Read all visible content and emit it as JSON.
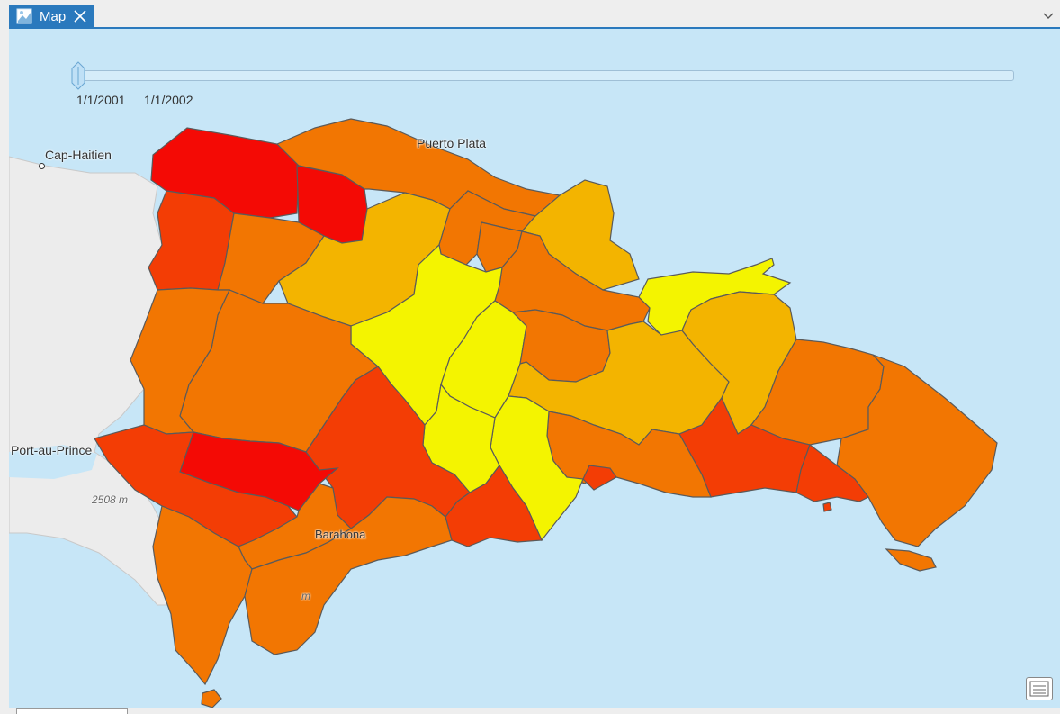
{
  "tab": {
    "label": "Map",
    "accent": "#2a79bd"
  },
  "map": {
    "labels": {
      "cap_haitien": "Cap-Haitien",
      "puerto_plata": "Puerto Plata",
      "port_au_prince": "Port-au-Prince",
      "barahona": "Barahona",
      "elevation": "2508 m",
      "elevation_partial": "m"
    },
    "palette": {
      "red": "#f40a05",
      "red_orange": "#f33d05",
      "orange": "#f27602",
      "amber": "#f3b400",
      "yellow": "#f4f400",
      "sea": "#c7e6f7",
      "haiti_land": "#ececec"
    }
  },
  "time_slider": {
    "start_label": "1/1/2001",
    "end_label": "1/1/2002",
    "position": 0
  },
  "icons": {
    "tab_icon": "map-icon",
    "close": "close-icon",
    "overflow": "chevron-down-icon",
    "legend": "legend-icon"
  }
}
